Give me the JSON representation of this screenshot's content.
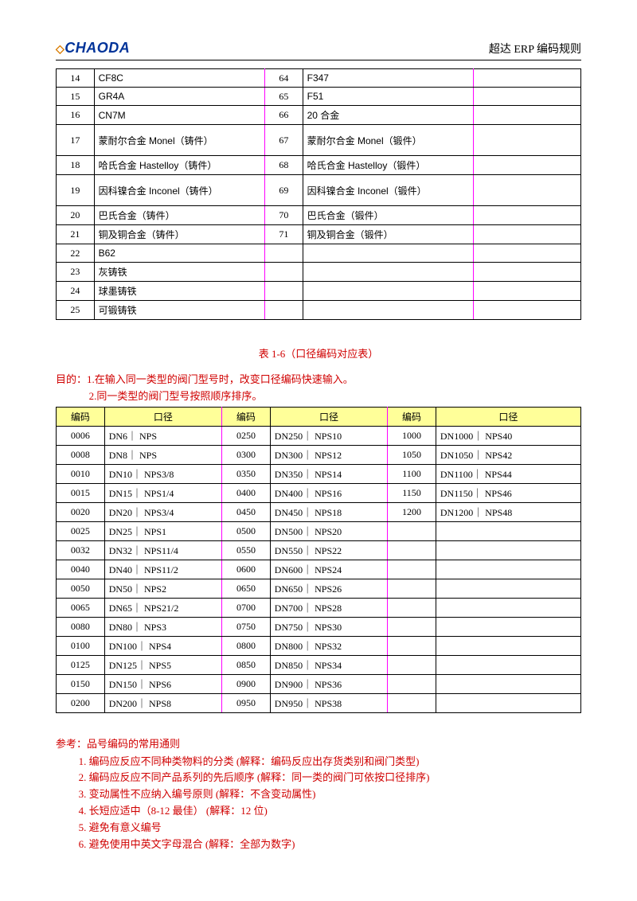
{
  "header": {
    "logo_text": "CHAODA",
    "doc_title": "超达 ERP 编码规则"
  },
  "table1": {
    "rows": [
      {
        "c1": "14",
        "m1": "CF8C",
        "c2": "64",
        "m2": "F347"
      },
      {
        "c1": "15",
        "m1": "GR4A",
        "c2": "65",
        "m2": "F51"
      },
      {
        "c1": "16",
        "m1": "CN7M",
        "c2": "66",
        "m2": "20 合金"
      },
      {
        "c1": "17",
        "m1": "蒙耐尔合金 Monel（铸件）",
        "c2": "67",
        "m2": "蒙耐尔合金 Monel（锻件）",
        "tall": true
      },
      {
        "c1": "18",
        "m1": "哈氏合金 Hastelloy（铸件）",
        "c2": "68",
        "m2": "哈氏合金 Hastelloy（锻件）"
      },
      {
        "c1": "19",
        "m1": "因科镍合金 Inconel（铸件）",
        "c2": "69",
        "m2": "因科镍合金 Inconel（锻件）",
        "tall": true
      },
      {
        "c1": "20",
        "m1": "巴氏合金（铸件）",
        "c2": "70",
        "m2": "巴氏合金（锻件）"
      },
      {
        "c1": "21",
        "m1": "铜及铜合金（铸件）",
        "c2": "71",
        "m2": "铜及铜合金（锻件）"
      },
      {
        "c1": "22",
        "m1": "B62",
        "c2": "",
        "m2": ""
      },
      {
        "c1": "23",
        "m1": "灰铸铁",
        "c2": "",
        "m2": ""
      },
      {
        "c1": "24",
        "m1": "球墨铸铁",
        "c2": "",
        "m2": ""
      },
      {
        "c1": "25",
        "m1": "可锻铸铁",
        "c2": "",
        "m2": ""
      }
    ]
  },
  "table2": {
    "caption": "表 1-6（口径编码对应表）",
    "purpose_label": "目的：",
    "purpose1": "1.在输入同一类型的阀门型号时，改变口径编码快速输入。",
    "purpose2": "2.同一类型的阀门型号按照顺序排序。",
    "head_code": "编码",
    "head_dia": "口径",
    "rows": [
      {
        "c1": "0006",
        "d1": "DN6｜ NPS",
        "c2": "0250",
        "d2": "DN250｜ NPS10",
        "c3": "1000",
        "d3": "DN1000｜ NPS40"
      },
      {
        "c1": "0008",
        "d1": "DN8｜ NPS",
        "c2": "0300",
        "d2": "DN300｜ NPS12",
        "c3": "1050",
        "d3": "DN1050｜ NPS42"
      },
      {
        "c1": "0010",
        "d1": "DN10｜ NPS3/8",
        "c2": "0350",
        "d2": "DN350｜ NPS14",
        "c3": "1100",
        "d3": "DN1100｜ NPS44"
      },
      {
        "c1": "0015",
        "d1": "DN15｜ NPS1/4",
        "c2": "0400",
        "d2": "DN400｜ NPS16",
        "c3": "1150",
        "d3": "DN1150｜ NPS46"
      },
      {
        "c1": "0020",
        "d1": "DN20｜ NPS3/4",
        "c2": "0450",
        "d2": "DN450｜ NPS18",
        "c3": "1200",
        "d3": "DN1200｜ NPS48"
      },
      {
        "c1": "0025",
        "d1": "DN25｜ NPS1",
        "c2": "0500",
        "d2": "DN500｜ NPS20",
        "c3": "",
        "d3": ""
      },
      {
        "c1": "0032",
        "d1": "DN32｜ NPS11/4",
        "c2": "0550",
        "d2": "DN550｜ NPS22",
        "c3": "",
        "d3": ""
      },
      {
        "c1": "0040",
        "d1": "DN40｜ NPS11/2",
        "c2": "0600",
        "d2": "DN600｜ NPS24",
        "c3": "",
        "d3": ""
      },
      {
        "c1": "0050",
        "d1": "DN50｜ NPS2",
        "c2": "0650",
        "d2": "DN650｜ NPS26",
        "c3": "",
        "d3": ""
      },
      {
        "c1": "0065",
        "d1": "DN65｜ NPS21/2",
        "c2": "0700",
        "d2": "DN700｜ NPS28",
        "c3": "",
        "d3": ""
      },
      {
        "c1": "0080",
        "d1": "DN80｜ NPS3",
        "c2": "0750",
        "d2": "DN750｜ NPS30",
        "c3": "",
        "d3": ""
      },
      {
        "c1": "0100",
        "d1": "DN100｜ NPS4",
        "c2": "0800",
        "d2": "DN800｜ NPS32",
        "c3": "",
        "d3": ""
      },
      {
        "c1": "0125",
        "d1": "DN125｜ NPS5",
        "c2": "0850",
        "d2": "DN850｜ NPS34",
        "c3": "",
        "d3": ""
      },
      {
        "c1": "0150",
        "d1": "DN150｜ NPS6",
        "c2": "0900",
        "d2": "DN900｜ NPS36",
        "c3": "",
        "d3": ""
      },
      {
        "c1": "0200",
        "d1": "DN200｜ NPS8",
        "c2": "0950",
        "d2": "DN950｜ NPS38",
        "c3": "",
        "d3": ""
      }
    ]
  },
  "reference": {
    "title": "参考：品号编码的常用通则",
    "items": [
      "编码应反应不同种类物料的分类  (解释：编码反应出存货类别和阀门类型)",
      "编码应反应不同产品系列的先后顺序  (解释：同一类的阀门可依按口径排序)",
      "变动属性不应纳入编号原则  (解释：不含变动属性)",
      "长短应适中（8-12 最佳）  (解释：12 位)",
      "避免有意义编号",
      "避免使用中英文字母混合  (解释：全部为数字)"
    ]
  }
}
